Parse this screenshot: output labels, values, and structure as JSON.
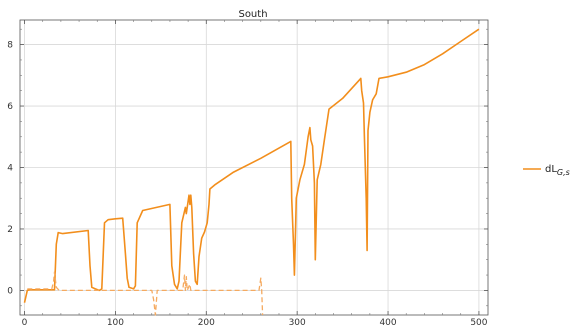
{
  "chart_data": {
    "type": "line",
    "title": "South",
    "xlabel": "",
    "ylabel": "",
    "xlim": [
      -5,
      510
    ],
    "ylim": [
      -0.8,
      8.8
    ],
    "xticks": [
      0,
      100,
      200,
      300,
      400,
      500
    ],
    "yticks": [
      0,
      2,
      4,
      6,
      8
    ],
    "grid": true,
    "legend_position": "right",
    "series": [
      {
        "name": "dL_{G,s}",
        "color": "#F28E1C",
        "style": "solid",
        "points": [
          [
            0,
            -0.4
          ],
          [
            3,
            0.0
          ],
          [
            6,
            0.02
          ],
          [
            33,
            0.02
          ],
          [
            35,
            1.5
          ],
          [
            37,
            1.88
          ],
          [
            42,
            1.85
          ],
          [
            70,
            1.95
          ],
          [
            72,
            0.8
          ],
          [
            74,
            0.1
          ],
          [
            78,
            0.05
          ],
          [
            82,
            0.0
          ],
          [
            85,
            0.05
          ],
          [
            88,
            2.2
          ],
          [
            92,
            2.3
          ],
          [
            100,
            2.33
          ],
          [
            108,
            2.35
          ],
          [
            111,
            1.2
          ],
          [
            113,
            0.4
          ],
          [
            115,
            0.1
          ],
          [
            120,
            0.05
          ],
          [
            122,
            0.15
          ],
          [
            124,
            2.2
          ],
          [
            130,
            2.6
          ],
          [
            160,
            2.8
          ],
          [
            162,
            0.8
          ],
          [
            165,
            0.2
          ],
          [
            168,
            0.05
          ],
          [
            170,
            0.3
          ],
          [
            173,
            2.2
          ],
          [
            177,
            2.7
          ],
          [
            178,
            2.5
          ],
          [
            181,
            3.1
          ],
          [
            182,
            2.8
          ],
          [
            183,
            3.1
          ],
          [
            184,
            2.7
          ],
          [
            186,
            1.2
          ],
          [
            188,
            0.3
          ],
          [
            190,
            0.2
          ],
          [
            192,
            1.1
          ],
          [
            195,
            1.7
          ],
          [
            198,
            1.9
          ],
          [
            201,
            2.2
          ],
          [
            203,
            2.8
          ],
          [
            204,
            3.3
          ],
          [
            210,
            3.45
          ],
          [
            230,
            3.85
          ],
          [
            260,
            4.3
          ],
          [
            293,
            4.85
          ],
          [
            294,
            3.0
          ],
          [
            296,
            1.5
          ],
          [
            297,
            0.5
          ],
          [
            299,
            3.0
          ],
          [
            303,
            3.6
          ],
          [
            308,
            4.1
          ],
          [
            312,
            5.0
          ],
          [
            314,
            5.3
          ],
          [
            315,
            4.9
          ],
          [
            317,
            4.7
          ],
          [
            319,
            3.5
          ],
          [
            320,
            1.0
          ],
          [
            322,
            3.6
          ],
          [
            326,
            4.1
          ],
          [
            330,
            4.9
          ],
          [
            335,
            5.9
          ],
          [
            350,
            6.25
          ],
          [
            370,
            6.9
          ],
          [
            371,
            6.5
          ],
          [
            373,
            6.1
          ],
          [
            374,
            5.0
          ],
          [
            376,
            3.0
          ],
          [
            377,
            1.3
          ],
          [
            378,
            5.2
          ],
          [
            380,
            5.8
          ],
          [
            383,
            6.2
          ],
          [
            387,
            6.4
          ],
          [
            390,
            6.9
          ],
          [
            400,
            6.95
          ],
          [
            420,
            7.1
          ],
          [
            440,
            7.35
          ],
          [
            460,
            7.7
          ],
          [
            480,
            8.1
          ],
          [
            500,
            8.5
          ]
        ]
      },
      {
        "name": "",
        "color": "#F5AA60",
        "style": "dashed",
        "points": [
          [
            3,
            0.05
          ],
          [
            30,
            0.05
          ],
          [
            32,
            0.3
          ],
          [
            33,
            0.6
          ],
          [
            35,
            0.1
          ],
          [
            38,
            0.0
          ],
          [
            140,
            0.0
          ],
          [
            142,
            -0.3
          ],
          [
            144,
            -0.8
          ],
          [
            146,
            0.0
          ],
          [
            174,
            0.0
          ],
          [
            176,
            0.5
          ],
          [
            177,
            0.0
          ],
          [
            178,
            0.45
          ],
          [
            179,
            0.0
          ],
          [
            182,
            0.2
          ],
          [
            183,
            0.0
          ],
          [
            258,
            0.0
          ],
          [
            260,
            0.4
          ],
          [
            261,
            0.0
          ],
          [
            262,
            -0.8
          ]
        ]
      }
    ],
    "legend": [
      {
        "label": "dL",
        "subscript": "G,s",
        "color": "#F28E1C"
      }
    ]
  }
}
